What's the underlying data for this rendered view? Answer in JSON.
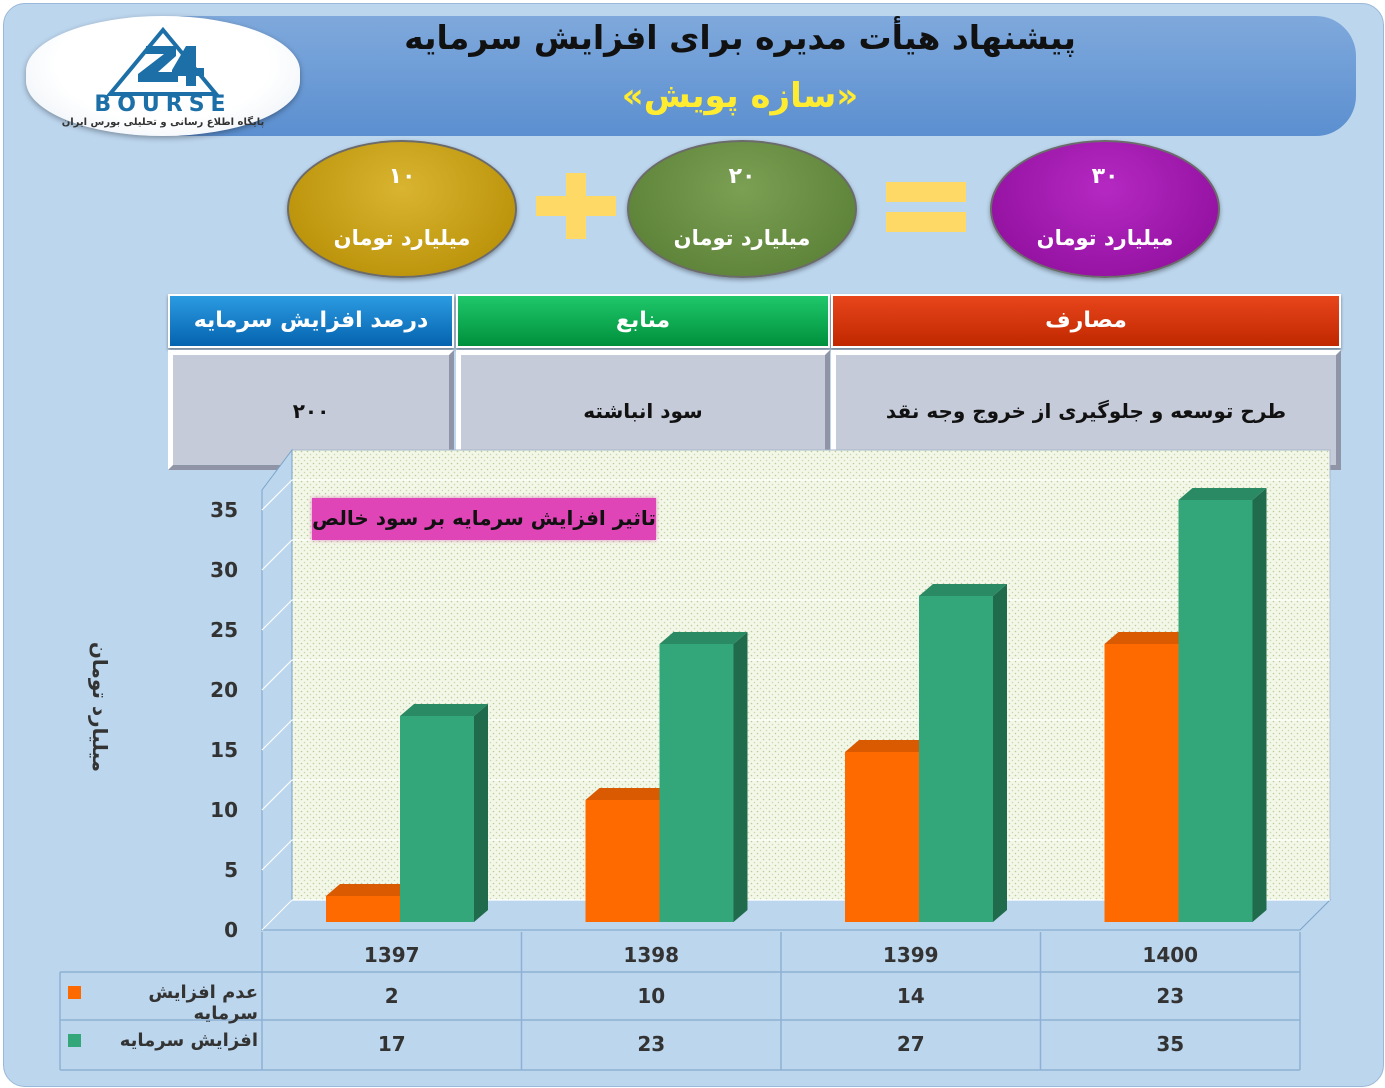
{
  "header": {
    "title": "پیشنهاد هیأت مدیره برای افزایش سرمایه",
    "subtitle": "«سازه پویش»"
  },
  "logo": {
    "mark": "24",
    "word": "BOURSE",
    "tagline": "پایگاه اطلاع رسانی و تحلیلی بورس ایران"
  },
  "equation": {
    "term_a": {
      "value": "۱۰",
      "unit": "میلیارد تومان"
    },
    "term_b": {
      "value": "۲۰",
      "unit": "میلیارد تومان"
    },
    "result": {
      "value": "۳۰",
      "unit": "میلیارد تومان"
    }
  },
  "summary_table": {
    "headers": {
      "percent": "درصد افزایش سرمایه",
      "sources": "منابع",
      "uses": "مصارف"
    },
    "values": {
      "percent": "۲۰۰",
      "sources": "سود انباشته",
      "uses": "طرح توسعه و جلوگیری از خروج وجه نقد"
    }
  },
  "colors": {
    "no_increase": "#ff6a00",
    "increase": "#33a67a"
  },
  "chart_data": {
    "type": "bar",
    "title": "تاثیر افزایش سرمایه بر سود خالص",
    "ylabel": "میلیارد تومان",
    "xlabel": "",
    "categories": [
      "1397",
      "1398",
      "1399",
      "1400"
    ],
    "series": [
      {
        "name": "عدم افزایش سرمایه",
        "values": [
          2,
          10,
          14,
          23
        ]
      },
      {
        "name": "افزایش سرمایه",
        "values": [
          17,
          23,
          27,
          35
        ]
      }
    ],
    "ylim": [
      0,
      35
    ],
    "yticks": [
      0,
      5,
      10,
      15,
      20,
      25,
      30,
      35
    ],
    "grid": true,
    "legend": "data-table-bottom"
  }
}
